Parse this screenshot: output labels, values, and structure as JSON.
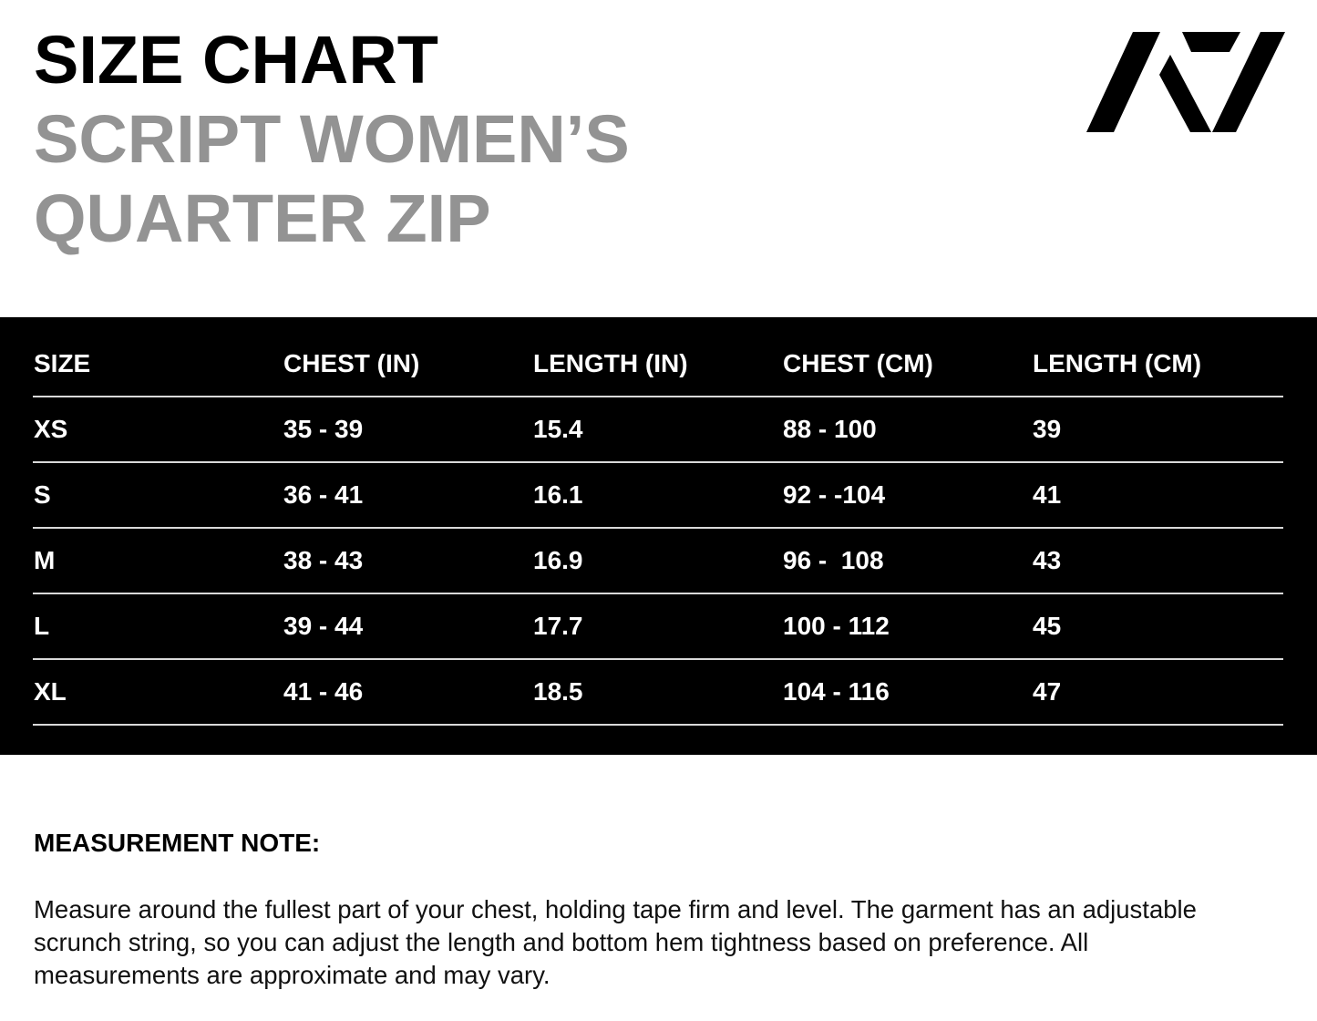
{
  "header": {
    "title": "SIZE CHART",
    "subtitle_line1": "SCRIPT WOMEN’S",
    "subtitle_line2": "QUARTER ZIP",
    "logo": "A7 logo"
  },
  "colors": {
    "title": "#000000",
    "subtitle": "#939393",
    "table_bg": "#000000",
    "table_text": "#ffffff"
  },
  "table": {
    "columns": [
      "SIZE",
      "CHEST (IN)",
      "LENGTH (IN)",
      "CHEST (CM)",
      "LENGTH (CM)"
    ],
    "rows": [
      [
        "XS",
        "35 - 39",
        "15.4",
        "88 - 100",
        "39"
      ],
      [
        "S",
        "36 - 41",
        "16.1",
        "92 - -104",
        "41"
      ],
      [
        "M",
        "38 - 43",
        "16.9",
        "96 -  108",
        "43"
      ],
      [
        "L",
        "39 - 44",
        "17.7",
        "100 - 112",
        "45"
      ],
      [
        "XL",
        "41 - 46",
        "18.5",
        "104 - 116",
        "47"
      ]
    ]
  },
  "note": {
    "heading": "MEASUREMENT NOTE:",
    "body": "Measure around the fullest part of your chest, holding tape firm and level. The garment has an adjustable scrunch string, so you can adjust the length and bottom hem tightness based on preference. All measurements are approximate and may vary."
  }
}
